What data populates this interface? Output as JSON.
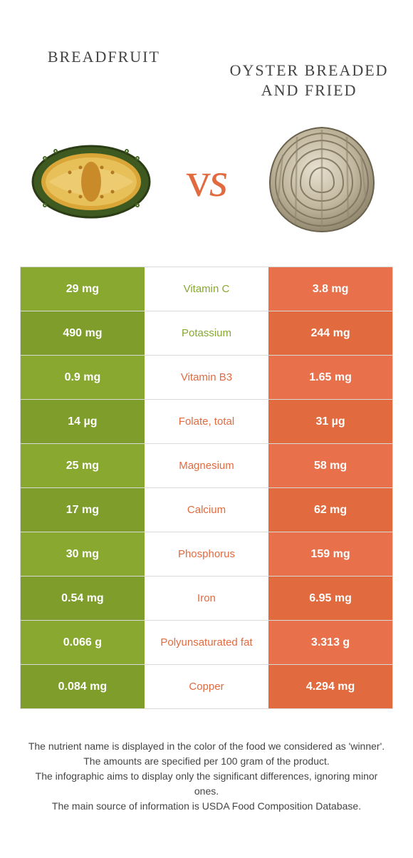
{
  "titles": {
    "left": "Breadfruit",
    "right": "Oyster breaded and fried"
  },
  "vs_label": "vs",
  "colors": {
    "green": "#88a82f",
    "green_dark": "#7e9d2b",
    "orange": "#e8704a",
    "orange_dark": "#e26a3f",
    "border": "#d9d9d9",
    "text": "#444444",
    "bg": "#ffffff"
  },
  "rows": [
    {
      "nutrient": "Vitamin C",
      "left": "29 mg",
      "right": "3.8 mg",
      "winner": "left"
    },
    {
      "nutrient": "Potassium",
      "left": "490 mg",
      "right": "244 mg",
      "winner": "left"
    },
    {
      "nutrient": "Vitamin B3",
      "left": "0.9 mg",
      "right": "1.65 mg",
      "winner": "right"
    },
    {
      "nutrient": "Folate, total",
      "left": "14 µg",
      "right": "31 µg",
      "winner": "right"
    },
    {
      "nutrient": "Magnesium",
      "left": "25 mg",
      "right": "58 mg",
      "winner": "right"
    },
    {
      "nutrient": "Calcium",
      "left": "17 mg",
      "right": "62 mg",
      "winner": "right"
    },
    {
      "nutrient": "Phosphorus",
      "left": "30 mg",
      "right": "159 mg",
      "winner": "right"
    },
    {
      "nutrient": "Iron",
      "left": "0.54 mg",
      "right": "6.95 mg",
      "winner": "right"
    },
    {
      "nutrient": "Polyunsaturated fat",
      "left": "0.066 g",
      "right": "3.313 g",
      "winner": "right"
    },
    {
      "nutrient": "Copper",
      "left": "0.084 mg",
      "right": "4.294 mg",
      "winner": "right"
    }
  ],
  "footer": [
    "The nutrient name is displayed in the color of the food we considered as 'winner'.",
    "The amounts are specified per 100 gram of the product.",
    "The infographic aims to display only the significant differences, ignoring minor ones.",
    "The main source of information is USDA Food Composition Database."
  ]
}
